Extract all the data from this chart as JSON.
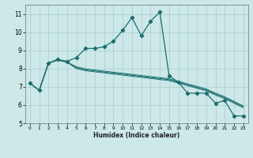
{
  "title": "",
  "xlabel": "Humidex (Indice chaleur)",
  "bg_color": "#cce8e8",
  "grid_color": "#aacccc",
  "line_color": "#1a6e6e",
  "xlim": [
    -0.5,
    23.5
  ],
  "ylim": [
    5.0,
    11.5
  ],
  "xticks": [
    0,
    1,
    2,
    3,
    4,
    5,
    6,
    7,
    8,
    9,
    10,
    11,
    12,
    13,
    14,
    15,
    16,
    17,
    18,
    19,
    20,
    21,
    22,
    23
  ],
  "yticks": [
    5,
    6,
    7,
    8,
    9,
    10,
    11
  ],
  "series1_x": [
    0,
    1,
    2,
    3,
    4,
    5,
    6,
    7,
    8,
    9,
    10,
    11,
    12,
    13,
    14,
    15,
    16,
    17,
    18,
    19,
    20,
    21,
    22,
    23
  ],
  "series1_y": [
    7.2,
    6.8,
    8.3,
    8.5,
    8.4,
    8.6,
    9.1,
    9.1,
    9.2,
    9.5,
    10.1,
    10.8,
    9.8,
    10.6,
    11.1,
    7.6,
    7.25,
    6.65,
    6.65,
    6.65,
    6.1,
    6.25,
    5.4,
    5.4
  ],
  "series2_x": [
    0,
    1,
    2,
    3,
    4,
    5,
    6,
    7,
    8,
    9,
    10,
    11,
    12,
    13,
    14,
    15,
    16,
    17,
    18,
    19,
    20,
    21,
    22,
    23
  ],
  "series2_y": [
    7.2,
    6.8,
    8.3,
    8.5,
    8.35,
    8.0,
    7.88,
    7.82,
    7.76,
    7.7,
    7.64,
    7.58,
    7.52,
    7.46,
    7.4,
    7.34,
    7.2,
    7.06,
    6.92,
    6.78,
    6.55,
    6.35,
    6.1,
    5.85
  ],
  "series3_x": [
    0,
    1,
    2,
    3,
    4,
    5,
    6,
    7,
    8,
    9,
    10,
    11,
    12,
    13,
    14,
    15,
    16,
    17,
    18,
    19,
    20,
    21,
    22,
    23
  ],
  "series3_y": [
    7.2,
    6.8,
    8.3,
    8.5,
    8.35,
    8.05,
    7.93,
    7.87,
    7.81,
    7.75,
    7.69,
    7.63,
    7.57,
    7.51,
    7.45,
    7.39,
    7.25,
    7.11,
    6.97,
    6.83,
    6.6,
    6.4,
    6.15,
    5.9
  ],
  "series4_x": [
    0,
    1,
    2,
    3,
    4,
    5,
    6,
    7,
    8,
    9,
    10,
    11,
    12,
    13,
    14,
    15,
    16,
    17,
    18,
    19,
    20,
    21,
    22,
    23
  ],
  "series4_y": [
    7.2,
    6.8,
    8.3,
    8.45,
    8.35,
    8.1,
    7.98,
    7.92,
    7.86,
    7.8,
    7.74,
    7.68,
    7.62,
    7.56,
    7.5,
    7.44,
    7.3,
    7.16,
    7.02,
    6.88,
    6.65,
    6.45,
    6.2,
    5.95
  ]
}
